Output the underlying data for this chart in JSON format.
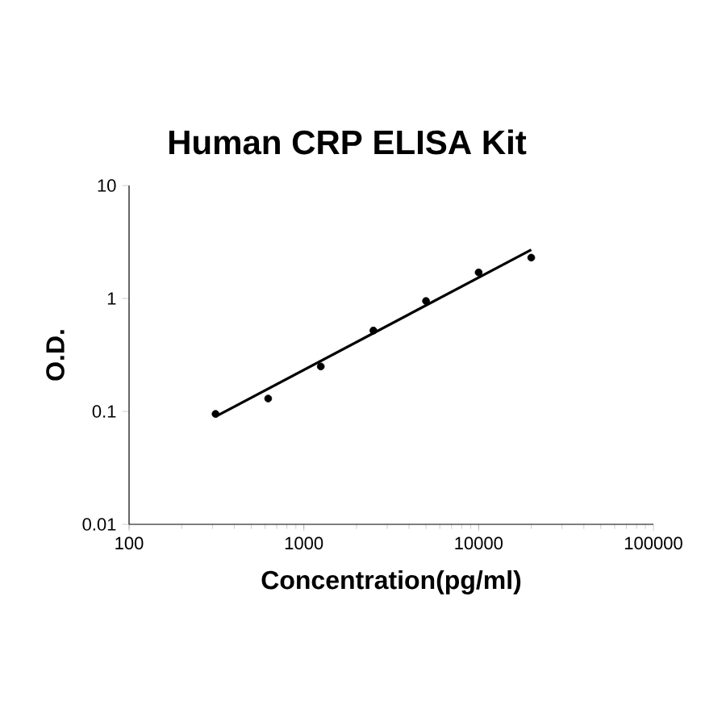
{
  "chart_data": {
    "type": "scatter",
    "title": "Human CRP ELISA Kit",
    "xlabel": "Concentration(pg/ml)",
    "ylabel": "O.D.",
    "log": "xy",
    "xlim": [
      100,
      100000
    ],
    "ylim": [
      0.01,
      10
    ],
    "xticks": [
      100,
      1000,
      10000,
      100000
    ],
    "yticks": [
      0.01,
      0.1,
      1,
      10
    ],
    "series": [
      {
        "color": "#000000",
        "marker": "circle",
        "x": [
          312.5,
          625,
          1250,
          2500,
          5000,
          10000,
          20000
        ],
        "values": [
          0.095,
          0.13,
          0.25,
          0.52,
          0.95,
          1.7,
          2.3
        ]
      },
      {
        "type": "line",
        "color": "#000000",
        "marker": "none",
        "x": [
          312.5,
          20000
        ],
        "values": [
          0.09,
          2.7
        ]
      }
    ]
  }
}
